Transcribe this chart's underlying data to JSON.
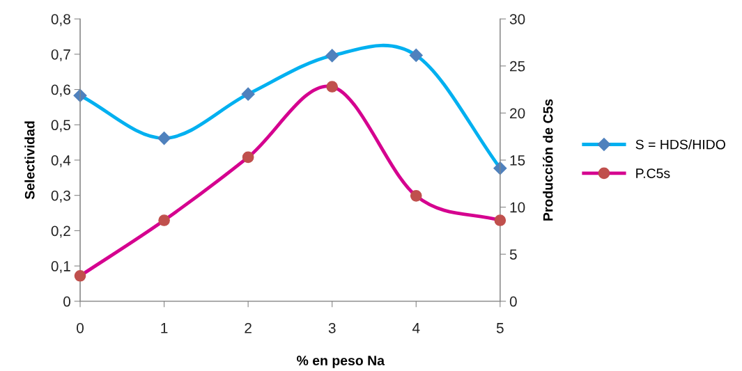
{
  "chart_data": {
    "type": "line",
    "xlabel": "% en peso Na",
    "ylabel": "Selectividad",
    "y2label": "Producción de C5s",
    "x": [
      0,
      1,
      2,
      3,
      4,
      5
    ],
    "xlim": [
      0,
      5
    ],
    "xticks": [
      0,
      1,
      2,
      3,
      4,
      5
    ],
    "ylim": [
      0,
      0.8
    ],
    "yticks": [
      {
        "value": 0,
        "label": "0"
      },
      {
        "value": 0.1,
        "label": "0,1"
      },
      {
        "value": 0.2,
        "label": "0,2"
      },
      {
        "value": 0.3,
        "label": "0,3"
      },
      {
        "value": 0.4,
        "label": "0,4"
      },
      {
        "value": 0.5,
        "label": "0,5"
      },
      {
        "value": 0.6,
        "label": "0,6"
      },
      {
        "value": 0.7,
        "label": "0,7"
      },
      {
        "value": 0.8,
        "label": "0,8"
      }
    ],
    "y2lim": [
      0,
      30
    ],
    "y2ticks": [
      0,
      5,
      10,
      15,
      20,
      25,
      30
    ],
    "series": [
      {
        "name": "S = HDS/HIDO",
        "color": "#00b0f0",
        "colors": [
          "#4f81bd",
          "#4f81bd",
          "#4f81bd",
          "#4f81bd",
          "#4f81bd",
          "#4f81bd"
        ],
        "marker": "diamond",
        "values": [
          0.583,
          0.462,
          0.587,
          0.696,
          0.697,
          0.377
        ]
      },
      {
        "name": "P.C5s",
        "color": "#d5008f",
        "colors": [
          "#c0504d",
          "#c0504d",
          "#c0504d",
          "#c0504d",
          "#c0504d",
          "#c0504d"
        ],
        "marker": "circle",
        "axis": "y2",
        "values": [
          2.7,
          8.6,
          15.3,
          22.8,
          11.2,
          8.6
        ]
      }
    ],
    "grid": false,
    "legend": "right"
  }
}
